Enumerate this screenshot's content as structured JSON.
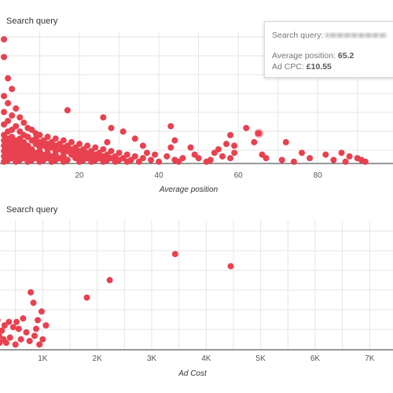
{
  "accent_color": "#e8414f",
  "charts": {
    "position_chart": {
      "title": "Search query"
    },
    "cost_chart": {
      "title": "Search query"
    }
  },
  "tooltip": {
    "query_label": "Search query:",
    "avg_position_label": "Average position:",
    "avg_position_value": "65.2",
    "cpc_label": "Ad CPC:",
    "cpc_value": "£10.55"
  },
  "chart_data": [
    {
      "type": "scatter",
      "title": "Search query",
      "xlabel": "Average position",
      "ylabel": "",
      "xlim": [
        0,
        95
      ],
      "xticks": [
        20,
        40,
        60,
        80
      ],
      "xtick_labels": [
        "20",
        "40",
        "60",
        "80"
      ],
      "grid": true,
      "series": [
        {
          "values": [
            [
              1,
              70
            ],
            [
              1,
              60
            ],
            [
              2,
              48
            ],
            [
              3,
              42
            ],
            [
              1,
              38
            ],
            [
              2,
              34
            ],
            [
              4,
              31
            ],
            [
              1,
              29
            ],
            [
              3,
              27
            ],
            [
              5,
              26
            ],
            [
              2,
              24
            ],
            [
              6,
              23
            ],
            [
              1,
              22
            ],
            [
              4,
              21
            ],
            [
              7,
              20
            ],
            [
              3,
              19
            ],
            [
              8,
              19
            ],
            [
              2,
              18
            ],
            [
              5,
              18
            ],
            [
              9,
              17
            ],
            [
              1,
              16
            ],
            [
              6,
              16
            ],
            [
              10,
              16
            ],
            [
              3,
              15
            ],
            [
              7,
              15
            ],
            [
              12,
              15
            ],
            [
              2,
              14
            ],
            [
              5,
              14
            ],
            [
              9,
              14
            ],
            [
              14,
              14
            ],
            [
              1,
              13
            ],
            [
              4,
              13
            ],
            [
              8,
              13
            ],
            [
              11,
              13
            ],
            [
              16,
              13
            ],
            [
              3,
              12
            ],
            [
              6,
              12
            ],
            [
              10,
              12
            ],
            [
              13,
              12
            ],
            [
              18,
              12
            ],
            [
              2,
              11
            ],
            [
              5,
              11
            ],
            [
              9,
              11
            ],
            [
              12,
              11
            ],
            [
              15,
              11
            ],
            [
              20,
              11
            ],
            [
              1,
              10
            ],
            [
              4,
              10
            ],
            [
              7,
              10
            ],
            [
              11,
              10
            ],
            [
              14,
              10
            ],
            [
              17,
              10
            ],
            [
              22,
              10
            ],
            [
              3,
              9
            ],
            [
              6,
              9
            ],
            [
              10,
              9
            ],
            [
              13,
              9
            ],
            [
              16,
              9
            ],
            [
              19,
              9
            ],
            [
              24,
              9
            ],
            [
              2,
              8
            ],
            [
              5,
              8
            ],
            [
              8,
              8
            ],
            [
              12,
              8
            ],
            [
              15,
              8
            ],
            [
              18,
              8
            ],
            [
              21,
              8
            ],
            [
              26,
              8
            ],
            [
              1,
              7
            ],
            [
              4,
              7
            ],
            [
              7,
              7
            ],
            [
              10,
              7
            ],
            [
              14,
              7
            ],
            [
              17,
              7
            ],
            [
              20,
              7
            ],
            [
              23,
              7
            ],
            [
              28,
              7
            ],
            [
              3,
              6
            ],
            [
              6,
              6
            ],
            [
              9,
              6
            ],
            [
              12,
              6
            ],
            [
              16,
              6
            ],
            [
              19,
              6
            ],
            [
              22,
              6
            ],
            [
              25,
              6
            ],
            [
              30,
              6
            ],
            [
              2,
              5
            ],
            [
              5,
              5
            ],
            [
              8,
              5
            ],
            [
              11,
              5
            ],
            [
              14,
              5
            ],
            [
              18,
              5
            ],
            [
              21,
              5
            ],
            [
              24,
              5
            ],
            [
              27,
              5
            ],
            [
              32,
              5
            ],
            [
              1,
              4
            ],
            [
              4,
              4
            ],
            [
              7,
              4
            ],
            [
              10,
              4
            ],
            [
              13,
              4
            ],
            [
              16,
              4
            ],
            [
              20,
              4
            ],
            [
              23,
              4
            ],
            [
              26,
              4
            ],
            [
              29,
              4
            ],
            [
              34,
              4
            ],
            [
              3,
              3
            ],
            [
              6,
              3
            ],
            [
              9,
              3
            ],
            [
              12,
              3
            ],
            [
              15,
              3
            ],
            [
              19,
              3
            ],
            [
              22,
              3
            ],
            [
              25,
              3
            ],
            [
              28,
              3
            ],
            [
              31,
              3
            ],
            [
              36,
              3
            ],
            [
              2,
              2
            ],
            [
              5,
              2
            ],
            [
              8,
              2
            ],
            [
              11,
              2
            ],
            [
              14,
              2
            ],
            [
              17,
              2
            ],
            [
              21,
              2
            ],
            [
              24,
              2
            ],
            [
              27,
              2
            ],
            [
              30,
              2
            ],
            [
              33,
              2
            ],
            [
              38,
              2
            ],
            [
              1,
              1
            ],
            [
              4,
              1
            ],
            [
              7,
              1
            ],
            [
              10,
              1
            ],
            [
              13,
              1
            ],
            [
              16,
              1
            ],
            [
              20,
              1
            ],
            [
              23,
              1
            ],
            [
              26,
              1
            ],
            [
              29,
              1
            ],
            [
              32,
              1
            ],
            [
              35,
              1
            ],
            [
              40,
              1
            ],
            [
              17,
              30
            ],
            [
              26,
              26
            ],
            [
              28,
              20
            ],
            [
              31,
              18
            ],
            [
              27,
              12
            ],
            [
              34,
              14
            ],
            [
              36,
              10
            ],
            [
              37,
              6
            ],
            [
              39,
              5
            ],
            [
              42,
              4
            ],
            [
              43,
              9
            ],
            [
              44,
              2
            ],
            [
              45,
              1
            ],
            [
              46,
              3
            ],
            [
              43,
              21
            ],
            [
              44,
              13
            ],
            [
              48,
              9
            ],
            [
              49,
              5
            ],
            [
              50,
              3
            ],
            [
              52,
              1
            ],
            [
              53,
              2
            ],
            [
              54,
              6
            ],
            [
              55,
              8
            ],
            [
              56,
              4
            ],
            [
              58,
              3
            ],
            [
              57,
              11
            ],
            [
              58,
              16
            ],
            [
              59,
              6
            ],
            [
              62,
              20
            ],
            [
              64,
              12
            ],
            [
              67,
              3
            ],
            [
              71,
              2
            ],
            [
              72,
              12
            ],
            [
              74,
              1
            ],
            [
              76,
              6
            ],
            [
              78,
              3
            ],
            [
              82,
              5
            ],
            [
              84,
              2
            ],
            [
              86,
              6
            ],
            [
              87,
              1
            ],
            [
              88,
              4
            ],
            [
              90,
              3
            ],
            [
              91,
              2
            ],
            [
              92,
              1
            ],
            [
              66,
              5
            ],
            [
              65,
              17
            ],
            [
              59,
              10
            ]
          ]
        }
      ],
      "highlight": {
        "x": 65.2,
        "y": 17
      }
    },
    {
      "type": "scatter",
      "title": "Search query",
      "xlabel": "Ad Cost",
      "ylabel": "",
      "xlim": [
        0,
        7500
      ],
      "xticks": [
        1000,
        2000,
        3000,
        4000,
        5000,
        6000,
        7000
      ],
      "xtick_labels": [
        "1K",
        "2K",
        "3K",
        "4K",
        "5K",
        "6K",
        "7K"
      ],
      "grid": true,
      "series": [
        {
          "values": [
            [
              3430,
              55
            ],
            [
              4450,
              48
            ],
            [
              2230,
              40
            ],
            [
              1810,
              30
            ],
            [
              780,
              33
            ],
            [
              830,
              27
            ],
            [
              980,
              22
            ],
            [
              1060,
              14
            ],
            [
              640,
              18
            ],
            [
              520,
              16
            ],
            [
              910,
              17
            ],
            [
              880,
              12
            ],
            [
              700,
              10
            ],
            [
              560,
              12
            ],
            [
              460,
              13
            ],
            [
              400,
              7
            ],
            [
              380,
              16
            ],
            [
              300,
              14
            ],
            [
              250,
              11
            ],
            [
              200,
              8
            ],
            [
              150,
              13
            ],
            [
              120,
              10
            ],
            [
              100,
              6
            ],
            [
              80,
              4
            ],
            [
              60,
              20
            ],
            [
              40,
              14
            ],
            [
              30,
              9
            ],
            [
              20,
              5
            ],
            [
              10,
              3
            ],
            [
              210,
              4
            ],
            [
              330,
              4
            ],
            [
              600,
              6
            ],
            [
              760,
              5
            ],
            [
              850,
              8
            ],
            [
              1000,
              6
            ],
            [
              940,
              3
            ],
            [
              500,
              3
            ],
            [
              280,
              6
            ],
            [
              170,
              17
            ],
            [
              90,
              25
            ]
          ]
        }
      ]
    }
  ]
}
